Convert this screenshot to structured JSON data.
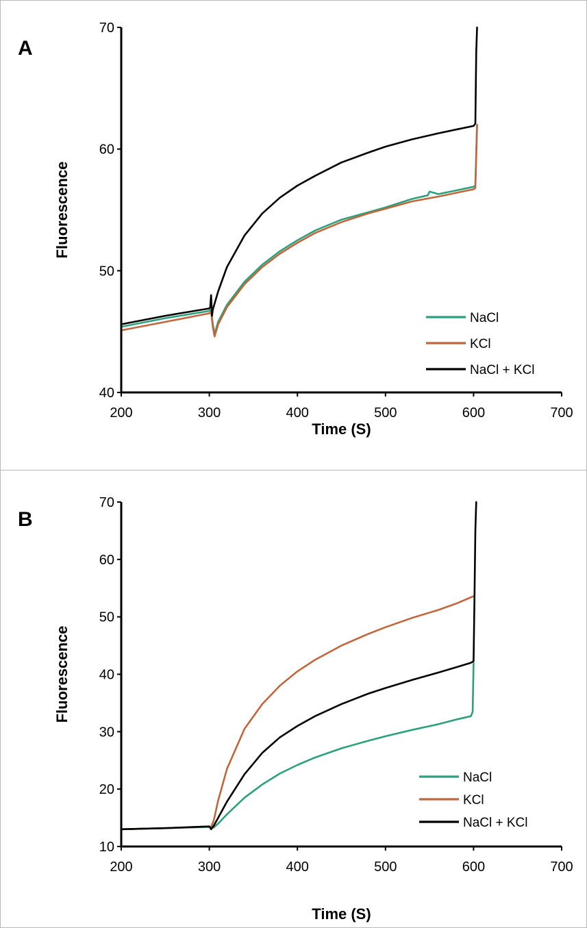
{
  "chart_data": [
    {
      "type": "line",
      "panel_label": "A",
      "xlabel": "Time (S)",
      "ylabel": "Fluorescence",
      "xlim": [
        200,
        700
      ],
      "ylim": [
        40,
        70
      ],
      "x_ticks": [
        200,
        300,
        400,
        500,
        600,
        700
      ],
      "y_ticks": [
        40,
        50,
        60,
        70
      ],
      "grid": false,
      "legend_position": "bottom-right",
      "series": [
        {
          "name": "NaCl",
          "color": "#2ba07d",
          "x": [
            200,
            250,
            300,
            302,
            304,
            306,
            310,
            320,
            340,
            360,
            380,
            400,
            420,
            450,
            480,
            500,
            530,
            548,
            550,
            560,
            580,
            600,
            602,
            604
          ],
          "y": [
            45.4,
            46.1,
            46.7,
            46.8,
            45.6,
            44.8,
            45.8,
            47.2,
            49.1,
            50.5,
            51.6,
            52.5,
            53.3,
            54.2,
            54.8,
            55.2,
            55.9,
            56.2,
            56.5,
            56.3,
            56.6,
            56.9,
            57.0,
            62.0
          ]
        },
        {
          "name": "KCl",
          "color": "#c0663a",
          "x": [
            200,
            250,
            300,
            302,
            304,
            306,
            310,
            320,
            340,
            360,
            380,
            400,
            420,
            450,
            480,
            500,
            530,
            560,
            580,
            600,
            602,
            604
          ],
          "y": [
            45.1,
            45.8,
            46.5,
            46.6,
            45.4,
            44.6,
            45.6,
            47.0,
            48.9,
            50.3,
            51.4,
            52.3,
            53.1,
            54.0,
            54.7,
            55.1,
            55.7,
            56.1,
            56.4,
            56.7,
            56.8,
            62.0
          ]
        },
        {
          "name": "NaCl + KCl",
          "color": "#000000",
          "x": [
            200,
            250,
            300,
            301,
            302,
            303,
            304,
            306,
            310,
            320,
            340,
            360,
            380,
            400,
            420,
            450,
            480,
            500,
            530,
            560,
            580,
            600,
            602,
            603,
            604
          ],
          "y": [
            45.6,
            46.3,
            46.9,
            47.0,
            48.0,
            46.3,
            46.8,
            47.3,
            48.3,
            50.3,
            52.9,
            54.7,
            56.0,
            57.0,
            57.8,
            58.9,
            59.7,
            60.2,
            60.8,
            61.3,
            61.6,
            61.9,
            62.1,
            68.0,
            70.0
          ]
        }
      ]
    },
    {
      "type": "line",
      "panel_label": "B",
      "xlabel": "Time (S)",
      "ylabel": "Fluorescence",
      "xlim": [
        200,
        700
      ],
      "ylim": [
        10,
        70
      ],
      "x_ticks": [
        200,
        300,
        400,
        500,
        600,
        700
      ],
      "y_ticks": [
        10,
        20,
        30,
        40,
        50,
        60,
        70
      ],
      "grid": false,
      "legend_position": "bottom-right",
      "series": [
        {
          "name": "NaCl",
          "color": "#2ba07d",
          "x": [
            200,
            250,
            300,
            305,
            310,
            320,
            340,
            360,
            380,
            400,
            420,
            450,
            480,
            500,
            530,
            560,
            580,
            597,
            599,
            600
          ],
          "y": [
            13.0,
            13.2,
            13.4,
            13.3,
            14.0,
            15.6,
            18.5,
            20.8,
            22.7,
            24.2,
            25.5,
            27.1,
            28.4,
            29.2,
            30.3,
            31.3,
            32.1,
            32.7,
            33.5,
            42.0
          ]
        },
        {
          "name": "KCl",
          "color": "#c0663a",
          "x": [
            200,
            250,
            300,
            302,
            305,
            310,
            320,
            340,
            360,
            380,
            400,
            420,
            450,
            480,
            500,
            530,
            560,
            580,
            600
          ],
          "y": [
            13.0,
            13.2,
            13.5,
            13.4,
            14.5,
            18.0,
            23.5,
            30.5,
            34.8,
            38.0,
            40.5,
            42.5,
            45.0,
            47.0,
            48.2,
            49.8,
            51.2,
            52.3,
            53.6
          ]
        },
        {
          "name": "NaCl + KCl",
          "color": "#000000",
          "x": [
            200,
            250,
            300,
            302,
            305,
            310,
            320,
            340,
            360,
            380,
            400,
            420,
            450,
            480,
            500,
            530,
            560,
            580,
            597,
            600,
            601,
            602,
            603
          ],
          "y": [
            13.0,
            13.2,
            13.5,
            13.0,
            13.6,
            15.0,
            17.8,
            22.6,
            26.3,
            29.0,
            31.0,
            32.7,
            34.8,
            36.6,
            37.6,
            39.0,
            40.3,
            41.2,
            42.0,
            42.3,
            53.0,
            65.0,
            70.0
          ]
        }
      ]
    }
  ]
}
